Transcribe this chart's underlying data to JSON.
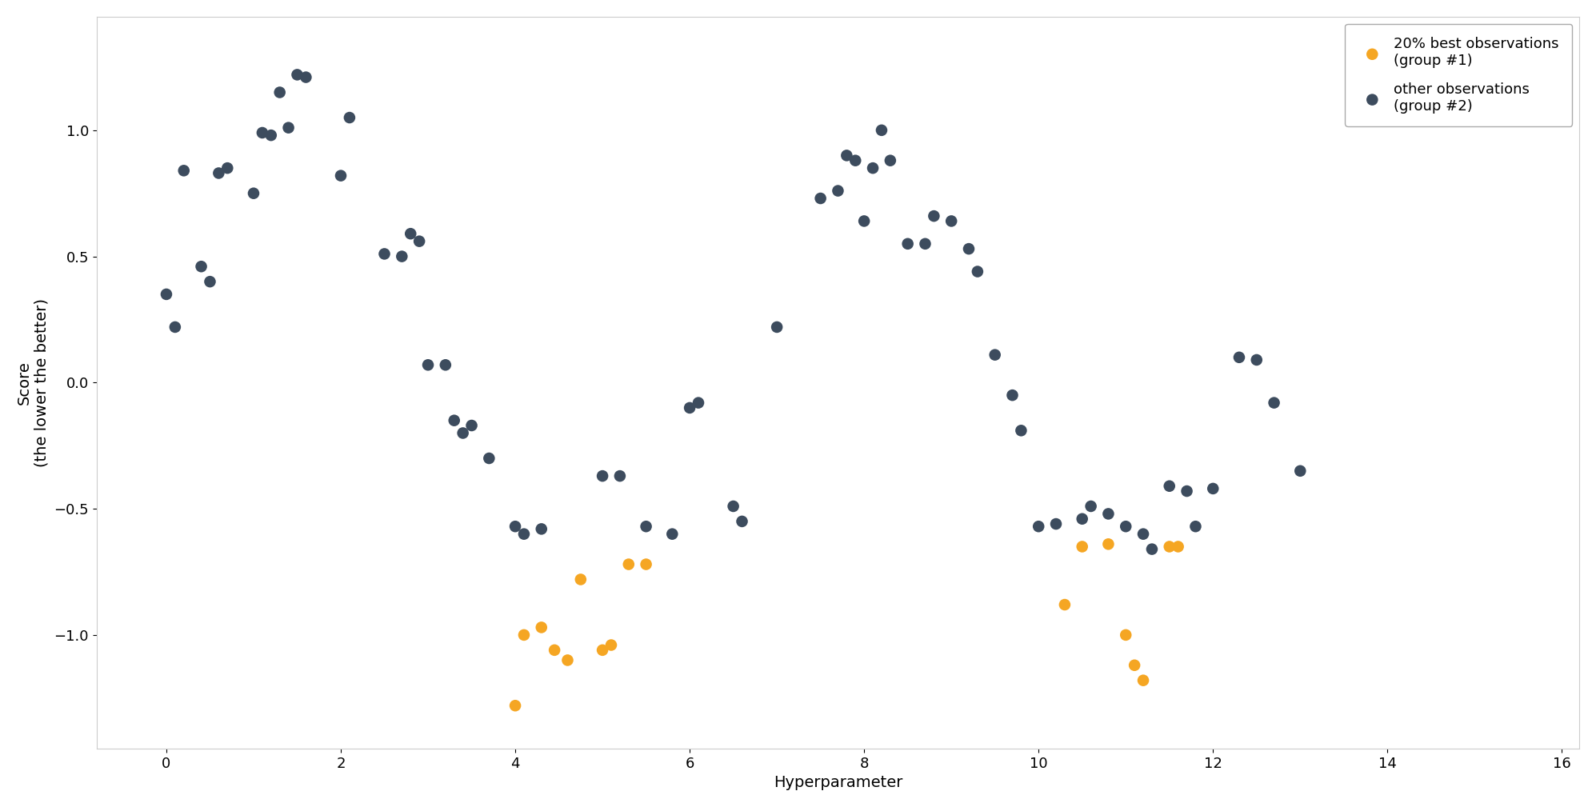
{
  "group1_x": [
    4.0,
    4.1,
    4.3,
    4.45,
    4.6,
    4.75,
    5.0,
    5.1,
    5.3,
    5.5,
    10.3,
    10.5,
    10.8,
    11.0,
    11.1,
    11.2,
    11.5,
    11.6
  ],
  "group1_y": [
    -1.28,
    -1.0,
    -0.97,
    -1.06,
    -1.1,
    -0.78,
    -1.06,
    -1.04,
    -0.72,
    -0.72,
    -0.88,
    -0.65,
    -0.64,
    -1.0,
    -1.12,
    -1.18,
    -0.65,
    -0.65
  ],
  "group2_x": [
    0.0,
    0.1,
    0.2,
    0.4,
    0.5,
    0.6,
    0.7,
    1.0,
    1.1,
    1.2,
    1.3,
    1.4,
    1.5,
    1.6,
    2.0,
    2.1,
    2.5,
    2.7,
    2.8,
    2.9,
    3.0,
    3.2,
    3.3,
    3.4,
    3.5,
    3.7,
    4.0,
    4.1,
    4.3,
    5.0,
    5.2,
    5.5,
    5.8,
    6.0,
    6.1,
    6.5,
    6.6,
    7.0,
    7.5,
    7.7,
    7.8,
    7.9,
    8.0,
    8.1,
    8.2,
    8.3,
    8.5,
    8.7,
    8.8,
    9.0,
    9.2,
    9.3,
    9.5,
    9.7,
    9.8,
    10.0,
    10.2,
    10.5,
    10.6,
    10.8,
    11.0,
    11.2,
    11.3,
    11.5,
    11.7,
    11.8,
    12.0,
    12.3,
    12.5,
    12.7,
    13.0
  ],
  "group2_y": [
    0.35,
    0.22,
    0.84,
    0.46,
    0.4,
    0.83,
    0.85,
    0.75,
    0.99,
    0.98,
    1.15,
    1.01,
    1.22,
    1.21,
    0.82,
    1.05,
    0.51,
    0.5,
    0.59,
    0.56,
    0.07,
    0.07,
    -0.15,
    -0.2,
    -0.17,
    -0.3,
    -0.57,
    -0.6,
    -0.58,
    -0.37,
    -0.37,
    -0.57,
    -0.6,
    -0.1,
    -0.08,
    -0.49,
    -0.55,
    0.22,
    0.73,
    0.76,
    0.9,
    0.88,
    0.64,
    0.85,
    1.0,
    0.88,
    0.55,
    0.55,
    0.66,
    0.64,
    0.53,
    0.44,
    0.11,
    -0.05,
    -0.19,
    -0.57,
    -0.56,
    -0.54,
    -0.49,
    -0.52,
    -0.57,
    -0.6,
    -0.66,
    -0.41,
    -0.43,
    -0.57,
    -0.42,
    0.1,
    0.09,
    -0.08,
    -0.35
  ],
  "group1_color": "#f5a623",
  "group2_color": "#3d4c5e",
  "group1_label": "20% best observations\n(group #1)",
  "group2_label": "other observations\n(group #2)",
  "xlabel": "Hyperparameter",
  "ylabel": "Score\n(the lower the better)",
  "xlim": [
    -0.8,
    16.2
  ],
  "ylim": [
    -1.45,
    1.45
  ],
  "xticks": [
    0,
    2,
    4,
    6,
    8,
    10,
    12,
    14,
    16
  ],
  "yticks": [
    -1.0,
    -0.5,
    0.0,
    0.5,
    1.0
  ],
  "marker_size": 110,
  "background_color": "#ffffff",
  "figure_bg": "#ffffff"
}
